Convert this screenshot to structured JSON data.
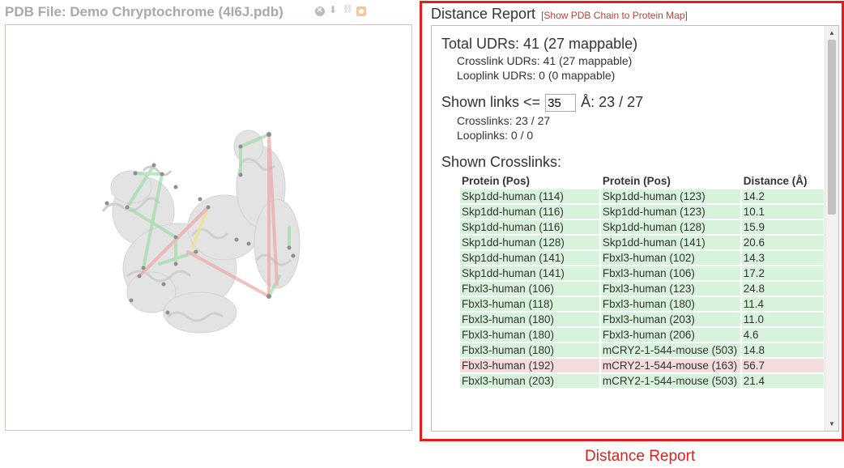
{
  "pdb": {
    "title": "PDB File: Demo Chryptochrome (4I6J.pdb)",
    "icons": [
      "close-icon",
      "download-icon",
      "link-icon",
      "settings-icon"
    ]
  },
  "report": {
    "title": "Distance Report",
    "chain_map_link": "[Show PDB Chain to Protein Map]",
    "total_udrs": "Total UDRs: 41 (27 mappable)",
    "crosslink_udrs": "Crosslink UDRs: 41 (27 mappable)",
    "looplink_udrs": "Looplink UDRs: 0 (0 mappable)",
    "shown_links_prefix": "Shown links <=",
    "distance_cutoff": "35",
    "shown_links_suffix": "Å: 23 / 27",
    "crosslinks_count": "Crosslinks: 23 / 27",
    "looplinks_count": "Looplinks: 0 / 0",
    "shown_crosslinks_heading": "Shown Crosslinks:",
    "columns": [
      "Protein (Pos)",
      "Protein (Pos)",
      "Distance (Å)"
    ],
    "rows": [
      {
        "p1": "Skp1dd-human (114)",
        "p2": "Skp1dd-human (123)",
        "d": "14.2",
        "status": "ok"
      },
      {
        "p1": "Skp1dd-human (116)",
        "p2": "Skp1dd-human (123)",
        "d": "10.1",
        "status": "ok"
      },
      {
        "p1": "Skp1dd-human (116)",
        "p2": "Skp1dd-human (128)",
        "d": "15.9",
        "status": "ok"
      },
      {
        "p1": "Skp1dd-human (128)",
        "p2": "Skp1dd-human (141)",
        "d": "20.6",
        "status": "ok"
      },
      {
        "p1": "Skp1dd-human (141)",
        "p2": "Fbxl3-human (102)",
        "d": "14.3",
        "status": "ok"
      },
      {
        "p1": "Skp1dd-human (141)",
        "p2": "Fbxl3-human (106)",
        "d": "17.2",
        "status": "ok"
      },
      {
        "p1": "Fbxl3-human (106)",
        "p2": "Fbxl3-human (123)",
        "d": "24.8",
        "status": "ok"
      },
      {
        "p1": "Fbxl3-human (118)",
        "p2": "Fbxl3-human (180)",
        "d": "11.4",
        "status": "ok"
      },
      {
        "p1": "Fbxl3-human (180)",
        "p2": "Fbxl3-human (203)",
        "d": "11.0",
        "status": "ok"
      },
      {
        "p1": "Fbxl3-human (180)",
        "p2": "Fbxl3-human (206)",
        "d": "4.6",
        "status": "ok"
      },
      {
        "p1": "Fbxl3-human (180)",
        "p2": "mCRY2-1-544-mouse (503)",
        "d": "14.8",
        "status": "ok"
      },
      {
        "p1": "Fbxl3-human (192)",
        "p2": "mCRY2-1-544-mouse (163)",
        "d": "56.7",
        "status": "bad"
      },
      {
        "p1": "Fbxl3-human (203)",
        "p2": "mCRY2-1-544-mouse (503)",
        "d": "21.4",
        "status": "ok"
      }
    ]
  },
  "caption": "Distance Report",
  "colors": {
    "highlight": "#e61c1c",
    "row_ok": "#d8f3dc",
    "row_bad": "#f5dcdc",
    "link": "#b5433e"
  }
}
